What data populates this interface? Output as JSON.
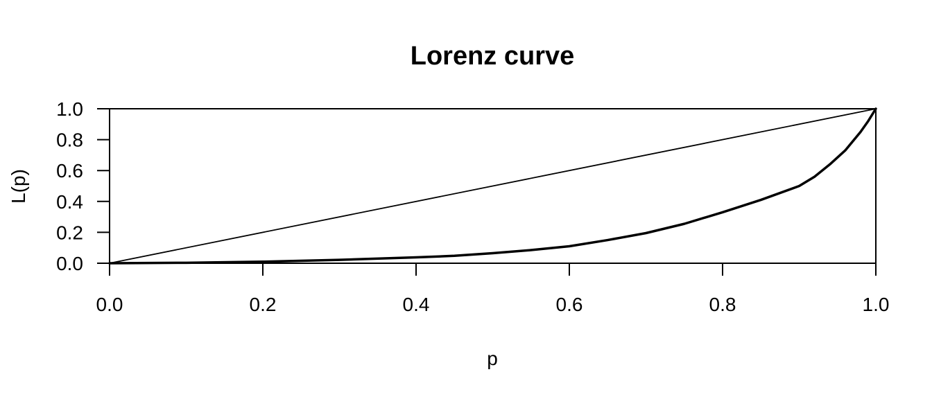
{
  "chart_data": {
    "type": "line",
    "title": "Lorenz curve",
    "xlabel": "p",
    "ylabel": "L(p)",
    "xlim": [
      0,
      1
    ],
    "ylim": [
      0,
      1
    ],
    "x_ticks": [
      "0.0",
      "0.2",
      "0.4",
      "0.6",
      "0.8",
      "1.0"
    ],
    "y_ticks": [
      "0.0",
      "0.2",
      "0.4",
      "0.6",
      "0.8",
      "1.0"
    ],
    "grid": false,
    "legend": "none",
    "series": [
      {
        "role": "equality-line",
        "x": [
          0,
          1
        ],
        "y": [
          0,
          1
        ]
      },
      {
        "role": "lorenz-curve",
        "x": [
          0,
          0.1,
          0.2,
          0.3,
          0.4,
          0.45,
          0.5,
          0.55,
          0.6,
          0.65,
          0.7,
          0.75,
          0.8,
          0.85,
          0.9,
          0.92,
          0.94,
          0.96,
          0.98,
          0.99,
          1.0
        ],
        "y": [
          0,
          0.003,
          0.01,
          0.022,
          0.038,
          0.048,
          0.065,
          0.085,
          0.11,
          0.15,
          0.195,
          0.255,
          0.33,
          0.41,
          0.5,
          0.56,
          0.64,
          0.73,
          0.85,
          0.92,
          1.0
        ]
      }
    ]
  }
}
